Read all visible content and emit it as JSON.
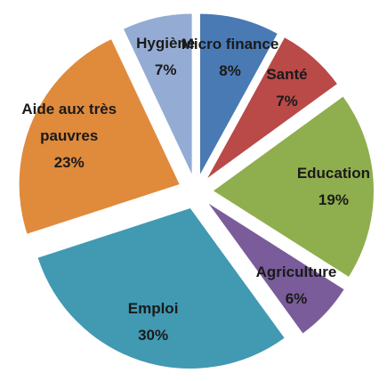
{
  "chart_data": {
    "type": "pie",
    "categories": [
      "Micro finance",
      "Santé",
      "Education",
      "Agriculture",
      "Emploi",
      "Aide aux très pauvres",
      "Hygiène"
    ],
    "values": [
      8,
      7,
      19,
      6,
      30,
      23,
      7
    ],
    "value_labels": [
      "8%",
      "7%",
      "19%",
      "6%",
      "30%",
      "23%",
      "7%"
    ],
    "colors": [
      "#4a7ab4",
      "#b94a48",
      "#8fae4e",
      "#7a5c9a",
      "#4199b2",
      "#e08a3c",
      "#94acd4"
    ]
  }
}
